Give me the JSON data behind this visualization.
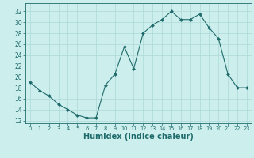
{
  "x": [
    0,
    1,
    2,
    3,
    4,
    5,
    6,
    7,
    8,
    9,
    10,
    11,
    12,
    13,
    14,
    15,
    16,
    17,
    18,
    19,
    20,
    21,
    22,
    23
  ],
  "y": [
    19.0,
    17.5,
    16.5,
    15.0,
    14.0,
    13.0,
    12.5,
    12.5,
    18.5,
    20.5,
    25.5,
    21.5,
    28.0,
    29.5,
    30.5,
    32.0,
    30.5,
    30.5,
    31.5,
    29.0,
    27.0,
    20.5,
    18.0,
    18.0
  ],
  "line_color": "#1f6b6b",
  "marker": "D",
  "marker_size": 2.0,
  "bg_color": "#cceeed",
  "grid_color": "#add8d6",
  "tick_color": "#1f6b6b",
  "spine_color": "#1f6b6b",
  "xlabel": "Humidex (Indice chaleur)",
  "xlabel_fontsize": 7,
  "yticks": [
    12,
    14,
    16,
    18,
    20,
    22,
    24,
    26,
    28,
    30,
    32
  ],
  "xticks": [
    0,
    1,
    2,
    3,
    4,
    5,
    6,
    7,
    8,
    9,
    10,
    11,
    12,
    13,
    14,
    15,
    16,
    17,
    18,
    19,
    20,
    21,
    22,
    23
  ],
  "ylim": [
    11.5,
    33.5
  ],
  "xlim": [
    -0.5,
    23.5
  ],
  "linewidth": 0.8,
  "tick_fontsize": 5.5,
  "xtick_fontsize": 4.8
}
